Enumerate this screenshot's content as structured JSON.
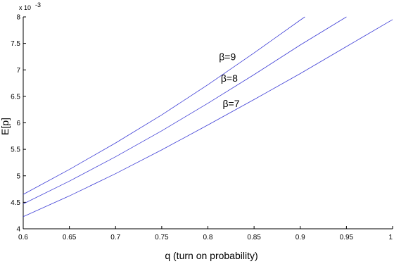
{
  "chart_data": {
    "type": "line",
    "title": "",
    "xlabel": "q (turn on probability)",
    "ylabel": "E[p]",
    "y_multiplier": "x 10",
    "y_exponent": "-3",
    "xlim": [
      0.6,
      1.0
    ],
    "ylim": [
      4,
      8
    ],
    "x_ticks": [
      0.6,
      0.65,
      0.7,
      0.75,
      0.8,
      0.85,
      0.9,
      0.95,
      1
    ],
    "x_tick_labels": [
      "0.6",
      "0.65",
      "0.7",
      "0.75",
      "0.8",
      "0.85",
      "0.9",
      "0.95",
      "1"
    ],
    "y_ticks": [
      4,
      4.5,
      5,
      5.5,
      6,
      6.5,
      7,
      7.5,
      8
    ],
    "y_tick_labels": [
      "4",
      "4.5",
      "5",
      "5.5",
      "6",
      "6.5",
      "7",
      "7.5",
      "8"
    ],
    "grid": false,
    "series_color": "#3d3dd6",
    "series": [
      {
        "name": "β=9",
        "x": [
          0.6,
          0.65,
          0.7,
          0.75,
          0.8,
          0.85,
          0.9,
          0.905
        ],
        "values": [
          4.65,
          5.12,
          5.62,
          6.15,
          6.72,
          7.32,
          7.94,
          8.0
        ]
      },
      {
        "name": "β=8",
        "x": [
          0.6,
          0.65,
          0.7,
          0.75,
          0.8,
          0.85,
          0.9,
          0.95
        ],
        "values": [
          4.47,
          4.9,
          5.36,
          5.85,
          6.37,
          6.91,
          7.47,
          8.0
        ]
      },
      {
        "name": "β=7",
        "x": [
          0.6,
          0.65,
          0.7,
          0.75,
          0.8,
          0.85,
          0.9,
          0.95,
          1.0
        ],
        "values": [
          4.23,
          4.62,
          5.04,
          5.49,
          5.96,
          6.44,
          6.93,
          7.44,
          7.95
        ]
      }
    ],
    "annotations": [
      {
        "text": "β=9",
        "x": 0.812,
        "y": 7.18
      },
      {
        "text": "β=8",
        "x": 0.814,
        "y": 6.78
      },
      {
        "text": "β=7",
        "x": 0.816,
        "y": 6.3
      }
    ]
  }
}
